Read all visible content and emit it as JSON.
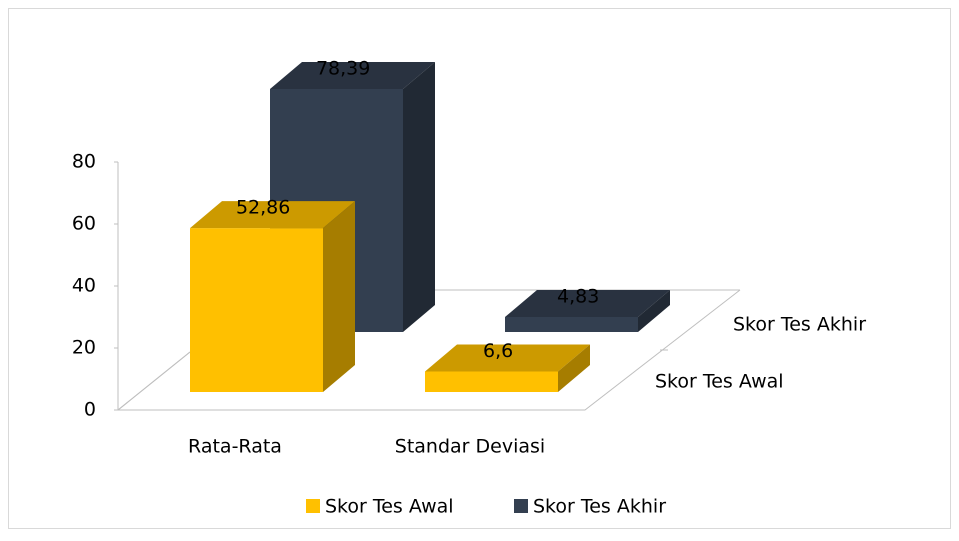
{
  "chart_data": {
    "type": "bar3d",
    "categories": [
      "Rata-Rata",
      "Standar Deviasi"
    ],
    "series": [
      {
        "name": "Skor Tes Awal",
        "color": "#FFC000",
        "values": [
          52.86,
          6.6
        ],
        "value_labels": [
          "52,86",
          "6,6"
        ]
      },
      {
        "name": "Skor Tes Akhir",
        "color": "#333F50",
        "values": [
          78.39,
          4.83
        ],
        "value_labels": [
          "78,39",
          "4,83"
        ]
      }
    ],
    "ylim": [
      0,
      80
    ],
    "yticks": [
      0,
      20,
      40,
      60,
      80
    ],
    "legend": "bottom"
  }
}
